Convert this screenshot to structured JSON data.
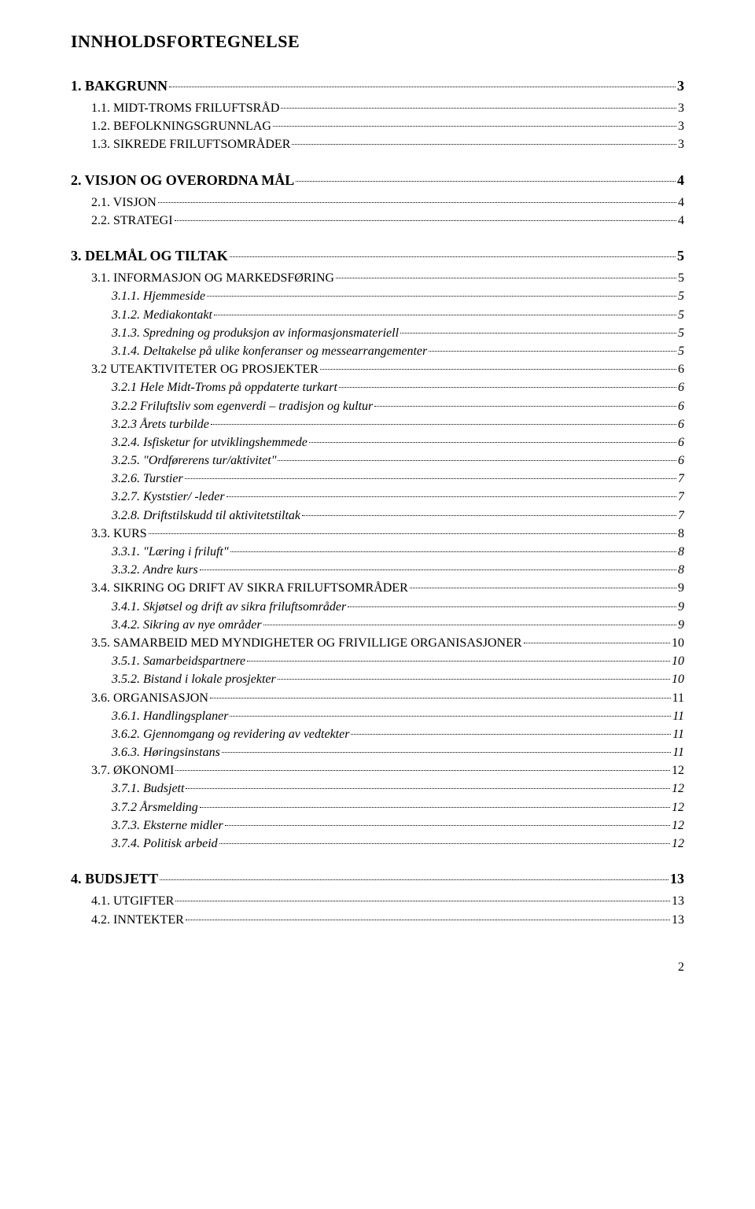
{
  "title": "INNHOLDSFORTEGNELSE",
  "footer_page": "2",
  "toc": [
    {
      "level": 1,
      "label": "1.    BAKGRUNN",
      "page": "3"
    },
    {
      "level": 2,
      "label": "1.1.    MIDT-TROMS FRILUFTSRÅD",
      "page": "3"
    },
    {
      "level": 2,
      "label": "1.2.    BEFOLKNINGSGRUNNLAG",
      "page": "3"
    },
    {
      "level": 2,
      "label": "1.3.    SIKREDE FRILUFTSOMRÅDER",
      "page": "3"
    },
    {
      "level": 1,
      "label": "2.    VISJON OG OVERORDNA MÅL",
      "page": "4"
    },
    {
      "level": 2,
      "label": "2.1.    VISJON",
      "page": "4"
    },
    {
      "level": 2,
      "label": "2.2.    STRATEGI",
      "page": "4"
    },
    {
      "level": 1,
      "label": "3.    DELMÅL OG TILTAK",
      "page": "5"
    },
    {
      "level": 2,
      "label": "3.1.    INFORMASJON OG MARKEDSFØRING",
      "page": "5"
    },
    {
      "level": 3,
      "label": "3.1.1.    Hjemmeside",
      "page": "5"
    },
    {
      "level": 3,
      "label": "3.1.2.    Mediakontakt",
      "page": "5"
    },
    {
      "level": 3,
      "label": "3.1.3.    Spredning og produksjon av informasjonsmateriell",
      "page": "5"
    },
    {
      "level": 3,
      "label": "3.1.4.    Deltakelse på ulike konferanser og messearrangementer",
      "page": "5"
    },
    {
      "level": 2,
      "label": "3.2    UTEAKTIVITETER OG PROSJEKTER",
      "page": "6"
    },
    {
      "level": 3,
      "label": "3.2.1    Hele Midt-Troms på oppdaterte turkart",
      "page": "6"
    },
    {
      "level": 3,
      "label": "3.2.2    Friluftsliv som egenverdi – tradisjon og kultur",
      "page": "6"
    },
    {
      "level": 3,
      "label": "3.2.3    Årets turbilde",
      "page": "6"
    },
    {
      "level": 3,
      "label": "3.2.4.    Isfisketur for utviklingshemmede",
      "page": "6"
    },
    {
      "level": 3,
      "label": "3.2.5.    \"Ordførerens tur/aktivitet\"",
      "page": "6"
    },
    {
      "level": 3,
      "label": "3.2.6.    Turstier",
      "page": "7"
    },
    {
      "level": 3,
      "label": "3.2.7.    Kyststier/ -leder",
      "page": "7"
    },
    {
      "level": 3,
      "label": "3.2.8.    Driftstilskudd til aktivitetstiltak",
      "page": "7"
    },
    {
      "level": 2,
      "label": "3.3.    KURS",
      "page": "8"
    },
    {
      "level": 3,
      "label": "3.3.1.    \"Læring i friluft\"",
      "page": "8"
    },
    {
      "level": 3,
      "label": "3.3.2.    Andre kurs",
      "page": "8"
    },
    {
      "level": 2,
      "label": "3.4.    SIKRING OG DRIFT AV SIKRA FRILUFTSOMRÅDER",
      "page": "9"
    },
    {
      "level": 3,
      "label": "3.4.1.    Skjøtsel og drift av sikra friluftsområder",
      "page": "9"
    },
    {
      "level": 3,
      "label": "3.4.2.    Sikring av nye områder",
      "page": "9"
    },
    {
      "level": 2,
      "label": "3.5.    SAMARBEID MED MYNDIGHETER OG FRIVILLIGE ORGANISASJONER",
      "page": "10"
    },
    {
      "level": 3,
      "label": "3.5.1.    Samarbeidspartnere",
      "page": "10"
    },
    {
      "level": 3,
      "label": "3.5.2.    Bistand i lokale prosjekter",
      "page": "10"
    },
    {
      "level": 2,
      "label": "3.6.    ORGANISASJON",
      "page": "11"
    },
    {
      "level": 3,
      "label": "3.6.1.    Handlingsplaner",
      "page": "11"
    },
    {
      "level": 3,
      "label": "3.6.2.    Gjennomgang og revidering av vedtekter",
      "page": "11"
    },
    {
      "level": 3,
      "label": "3.6.3.    Høringsinstans",
      "page": "11"
    },
    {
      "level": 2,
      "label": "3.7.    ØKONOMI",
      "page": "12"
    },
    {
      "level": 3,
      "label": "3.7.1.    Budsjett",
      "page": "12"
    },
    {
      "level": 3,
      "label": "3.7.2    Årsmelding",
      "page": "12"
    },
    {
      "level": 3,
      "label": "3.7.3.    Eksterne midler",
      "page": "12"
    },
    {
      "level": 3,
      "label": "3.7.4.    Politisk arbeid",
      "page": "12"
    },
    {
      "level": 1,
      "label": "4.    BUDSJETT",
      "page": "13"
    },
    {
      "level": 2,
      "label": "4.1.    UTGIFTER",
      "page": "13"
    },
    {
      "level": 2,
      "label": "4.2.    INNTEKTER",
      "page": "13"
    }
  ]
}
